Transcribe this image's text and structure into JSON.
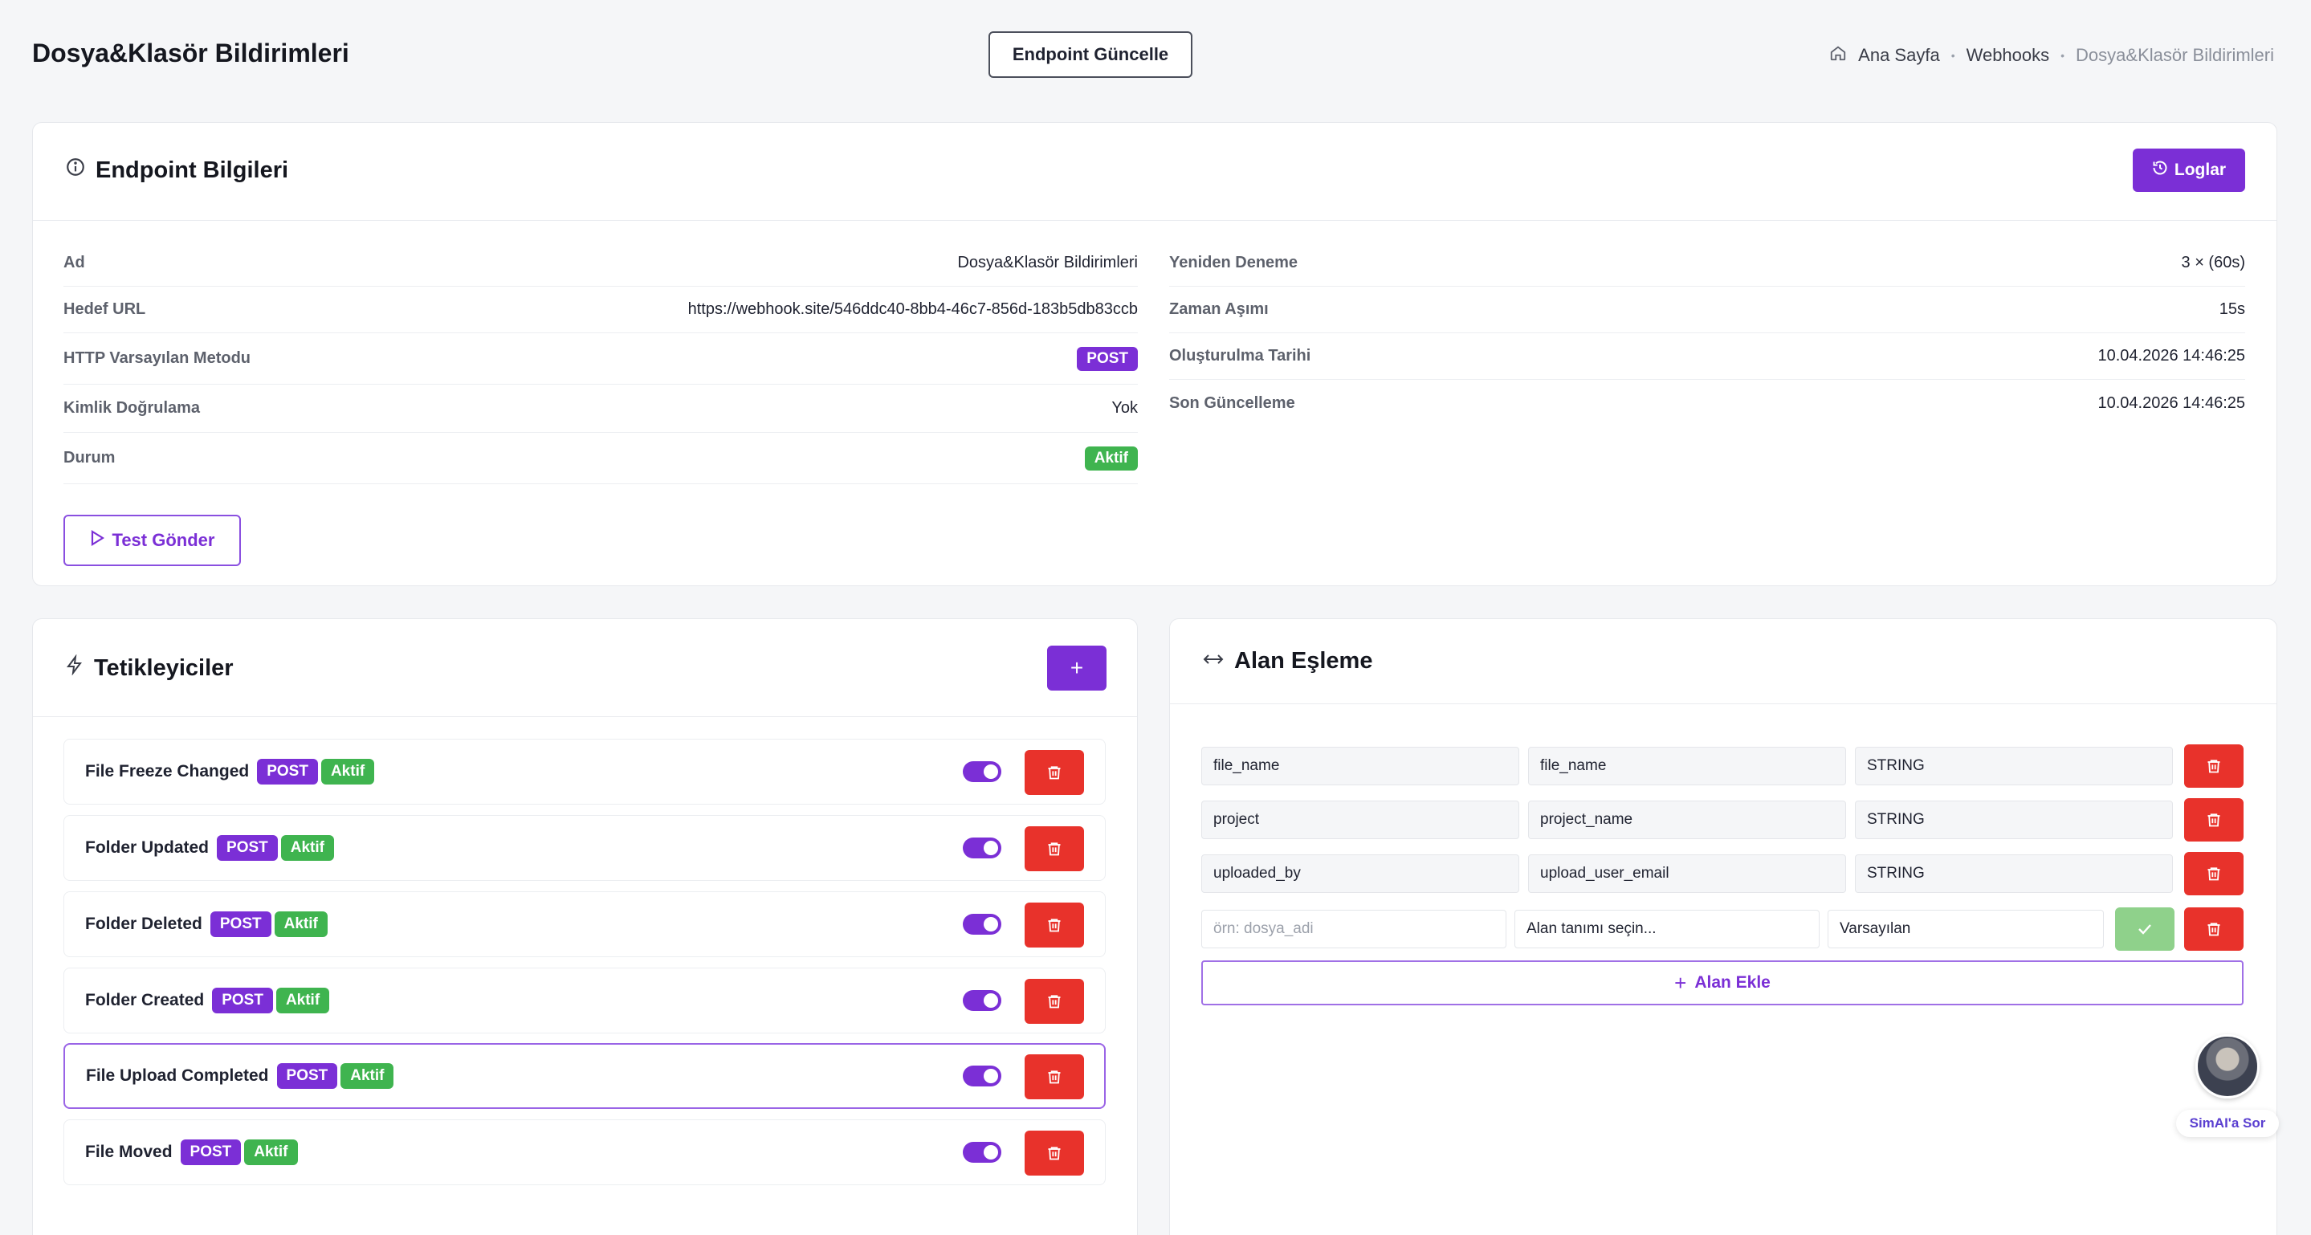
{
  "header": {
    "title": "Dosya&Klasör Bildirimleri",
    "update_button": "Endpoint Güncelle",
    "breadcrumb": [
      "Ana Sayfa",
      "Webhooks",
      "Dosya&Klasör Bildirimleri"
    ]
  },
  "endpoint": {
    "title": "Endpoint Bilgileri",
    "logs_button": "Loglar",
    "left": [
      {
        "label": "Ad",
        "value": "Dosya&Klasör Bildirimleri"
      },
      {
        "label": "Hedef URL",
        "value": "https://webhook.site/546ddc40-8bb4-46c7-856d-183b5db83ccb"
      },
      {
        "label": "HTTP Varsayılan Metodu",
        "value": "POST"
      },
      {
        "label": "Kimlik Doğrulama",
        "value": "Yok"
      },
      {
        "label": "Durum",
        "value": "Aktif"
      }
    ],
    "right": [
      {
        "label": "Yeniden Deneme",
        "value": "3 × (60s)"
      },
      {
        "label": "Zaman Aşımı",
        "value": "15s"
      },
      {
        "label": "Oluşturulma Tarihi",
        "value": "10.04.2026 14:46:25"
      },
      {
        "label": "Son Güncelleme",
        "value": "10.04.2026 14:46:25"
      }
    ],
    "test_button": "Test Gönder"
  },
  "triggers": {
    "title": "Tetikleyiciler",
    "add_button": "+",
    "items": [
      {
        "name": "File Freeze Changed",
        "method": "POST",
        "status": "Aktif"
      },
      {
        "name": "Folder Updated",
        "method": "POST",
        "status": "Aktif"
      },
      {
        "name": "Folder Deleted",
        "method": "POST",
        "status": "Aktif"
      },
      {
        "name": "Folder Created",
        "method": "POST",
        "status": "Aktif"
      },
      {
        "name": "File Upload Completed",
        "method": "POST",
        "status": "Aktif"
      },
      {
        "name": "File Moved",
        "method": "POST",
        "status": "Aktif"
      }
    ]
  },
  "mapping": {
    "title": "Alan Eşleme",
    "rows": [
      {
        "source": "file_name",
        "target": "file_name",
        "type": "STRING"
      },
      {
        "source": "project",
        "target": "project_name",
        "type": "STRING"
      },
      {
        "source": "uploaded_by",
        "target": "upload_user_email",
        "type": "STRING"
      }
    ],
    "new_row": {
      "source_placeholder": "örn: dosya_adi",
      "target_placeholder": "Alan tanımı seçin...",
      "type_value": "Varsayılan"
    },
    "add_button": "Alan Ekle"
  },
  "assistant": {
    "label": "SimAI'a Sor"
  },
  "colors": {
    "accent": "#7b2fd6",
    "success": "#3fb44f",
    "danger": "#e8322b"
  }
}
